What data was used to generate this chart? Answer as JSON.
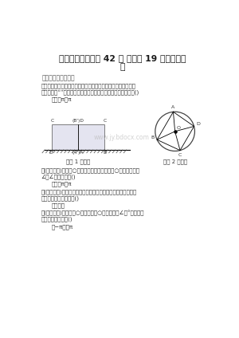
{
  "title_line1": "中考数学特训方案 42 份 人教版 19 免费推荐下",
  "title_line2": "载",
  "subtitle": "第课与圆有关的计算",
  "q1_line1": "．如图，一块边长为的正方形木板，在水平桌面上绕点按逆时针",
  "q1_line2": "方向旋转至“”的位置，则顶点从开始到结束所经过的路径长为()",
  "q1_options": "．．．π．π",
  "q2_line1": "．(和宁中考)如图，○约半径为，四边形内接于○，连接，，若",
  "q2_line2": "∠＝∠，则的长为()",
  "q2_options": "．根．π．π",
  "q3_line1": "．(宿迁中考)若将半径为的半圆形纸片围成一个圆锥的侧面，则",
  "q3_line2": "这个圆锥的底面面积是()",
  "q3_options": "．．．．",
  "q4_line1": "．(临沂中考)如图，是○的直径，是○的切线，若∠＝°，＝，则",
  "q4_line2": "阴影部分的面积是()",
  "q4_options": "．−π．＋π",
  "fig1_caption": "（第 1 题图）",
  "fig2_caption": "（第 2 题图）",
  "watermark": "www.jy.bdocx.com",
  "bg_color": "#ffffff",
  "text_color": "#333333"
}
